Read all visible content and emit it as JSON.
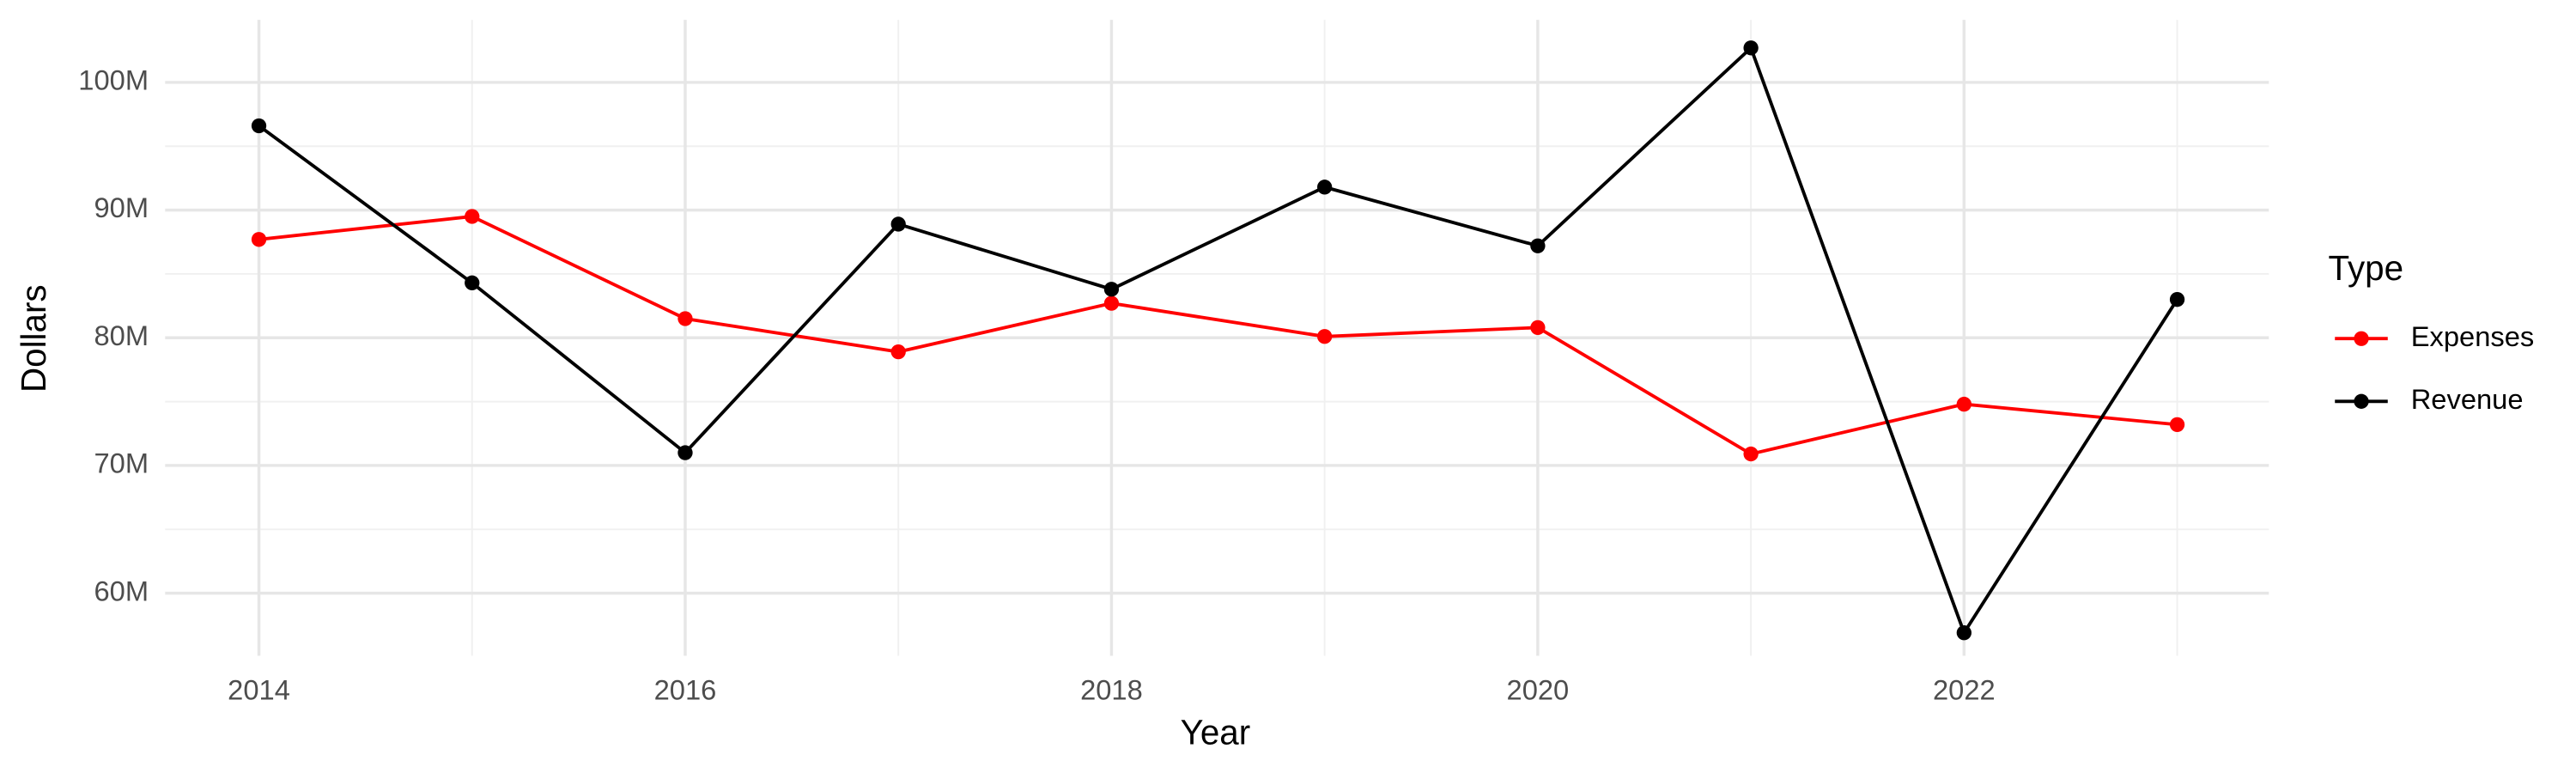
{
  "chart_data": {
    "type": "line",
    "x_label": "Year",
    "y_label": "Dollars",
    "legend_title": "Type",
    "legend_position": "right",
    "grid": true,
    "x": [
      2014,
      2015,
      2016,
      2017,
      2018,
      2019,
      2020,
      2021,
      2022,
      2023
    ],
    "series": [
      {
        "name": "Expenses",
        "color": "#ff0000",
        "values": [
          87700000,
          89500000,
          81500000,
          78900000,
          82700000,
          80100000,
          80800000,
          70900000,
          74800000,
          73200000
        ]
      },
      {
        "name": "Revenue",
        "color": "#000000",
        "values": [
          96600000,
          84300000,
          71000000,
          88900000,
          83800000,
          91800000,
          87200000,
          102700000,
          56900000,
          83000000
        ]
      }
    ],
    "xlim": [
      2013.56,
      2023.43
    ],
    "xticks": [
      2014,
      2016,
      2018,
      2020,
      2022
    ],
    "ylim": [
      55100000,
      104900000
    ],
    "yticks": [
      {
        "value": 60000000,
        "label": "60M"
      },
      {
        "value": 70000000,
        "label": "70M"
      },
      {
        "value": 80000000,
        "label": "80M"
      },
      {
        "value": 90000000,
        "label": "90M"
      },
      {
        "value": 100000000,
        "label": "100M"
      }
    ]
  }
}
